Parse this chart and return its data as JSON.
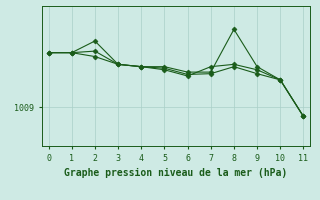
{
  "background_color": "#ceeae4",
  "grid_color": "#aacfc8",
  "line_color": "#1a5c1a",
  "xlabel": "Graphe pression niveau de la mer (hPa)",
  "xlabel_fontsize": 7,
  "ytick_label": "1009",
  "ytick_value": 1009,
  "x_values": [
    0,
    1,
    2,
    3,
    4,
    5,
    6,
    7,
    8,
    9,
    10,
    11
  ],
  "series1": [
    1016.0,
    1016.0,
    1017.5,
    1014.5,
    1014.2,
    1014.2,
    1013.5,
    1013.5,
    1019.0,
    1014.2,
    1012.5,
    1007.8
  ],
  "series2": [
    1016.0,
    1016.0,
    1015.5,
    1014.5,
    1014.2,
    1013.8,
    1013.0,
    1014.2,
    1014.5,
    1013.8,
    1012.5,
    1007.8
  ],
  "series3": [
    1016.0,
    1016.0,
    1016.2,
    1014.5,
    1014.2,
    1014.0,
    1013.2,
    1013.3,
    1014.2,
    1013.3,
    1012.5,
    1007.8
  ],
  "xlim": [
    -0.3,
    11.3
  ],
  "ylim": [
    1004.0,
    1022.0
  ],
  "yticks": [
    1009
  ],
  "xticks": [
    0,
    1,
    2,
    3,
    4,
    5,
    6,
    7,
    8,
    9,
    10,
    11
  ],
  "tick_fontsize": 6,
  "marker": "D",
  "markersize": 2.5,
  "linewidth": 0.8
}
